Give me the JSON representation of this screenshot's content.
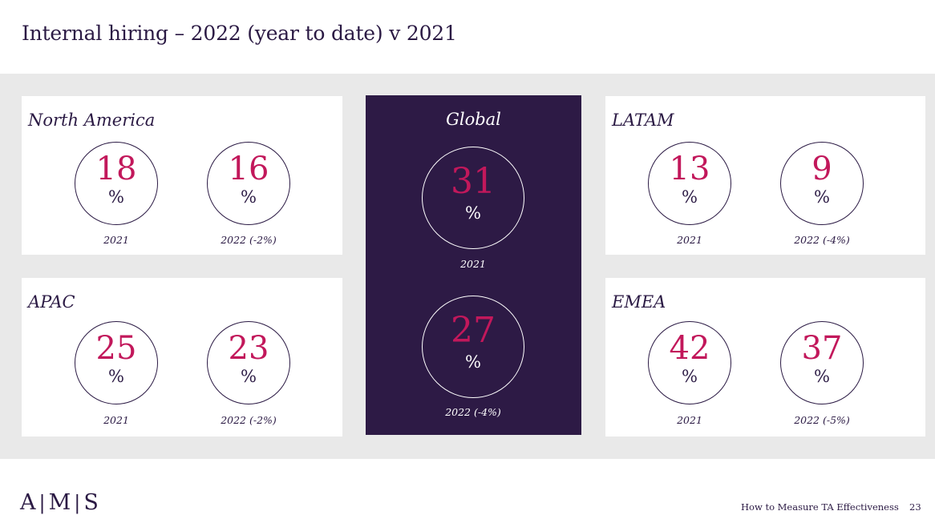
{
  "title": "Internal hiring – 2022 (year to date) v 2021",
  "colors": {
    "accent": "#c2185b",
    "dark": "#2d1a45",
    "band": "#e9e9e9"
  },
  "regions": {
    "north_america": {
      "label": "North America",
      "stats": [
        {
          "value": "18",
          "unit": "%",
          "caption": "2021"
        },
        {
          "value": "16",
          "unit": "%",
          "caption": "2022 (-2%)"
        }
      ]
    },
    "apac": {
      "label": "APAC",
      "stats": [
        {
          "value": "25",
          "unit": "%",
          "caption": "2021"
        },
        {
          "value": "23",
          "unit": "%",
          "caption": "2022 (-2%)"
        }
      ]
    },
    "global": {
      "label": "Global",
      "stats": [
        {
          "value": "31",
          "unit": "%",
          "caption": "2021"
        },
        {
          "value": "27",
          "unit": "%",
          "caption": "2022 (-4%)"
        }
      ]
    },
    "latam": {
      "label": "LATAM",
      "stats": [
        {
          "value": "13",
          "unit": "%",
          "caption": "2021"
        },
        {
          "value": "9",
          "unit": "%",
          "caption": "2022 (-4%)"
        }
      ]
    },
    "emea": {
      "label": "EMEA",
      "stats": [
        {
          "value": "42",
          "unit": "%",
          "caption": "2021"
        },
        {
          "value": "37",
          "unit": "%",
          "caption": "2022 (-5%)"
        }
      ]
    }
  },
  "footer": {
    "logo": [
      "A",
      "M",
      "S"
    ],
    "document_title": "How to Measure TA Effectiveness",
    "page_number": "23"
  }
}
